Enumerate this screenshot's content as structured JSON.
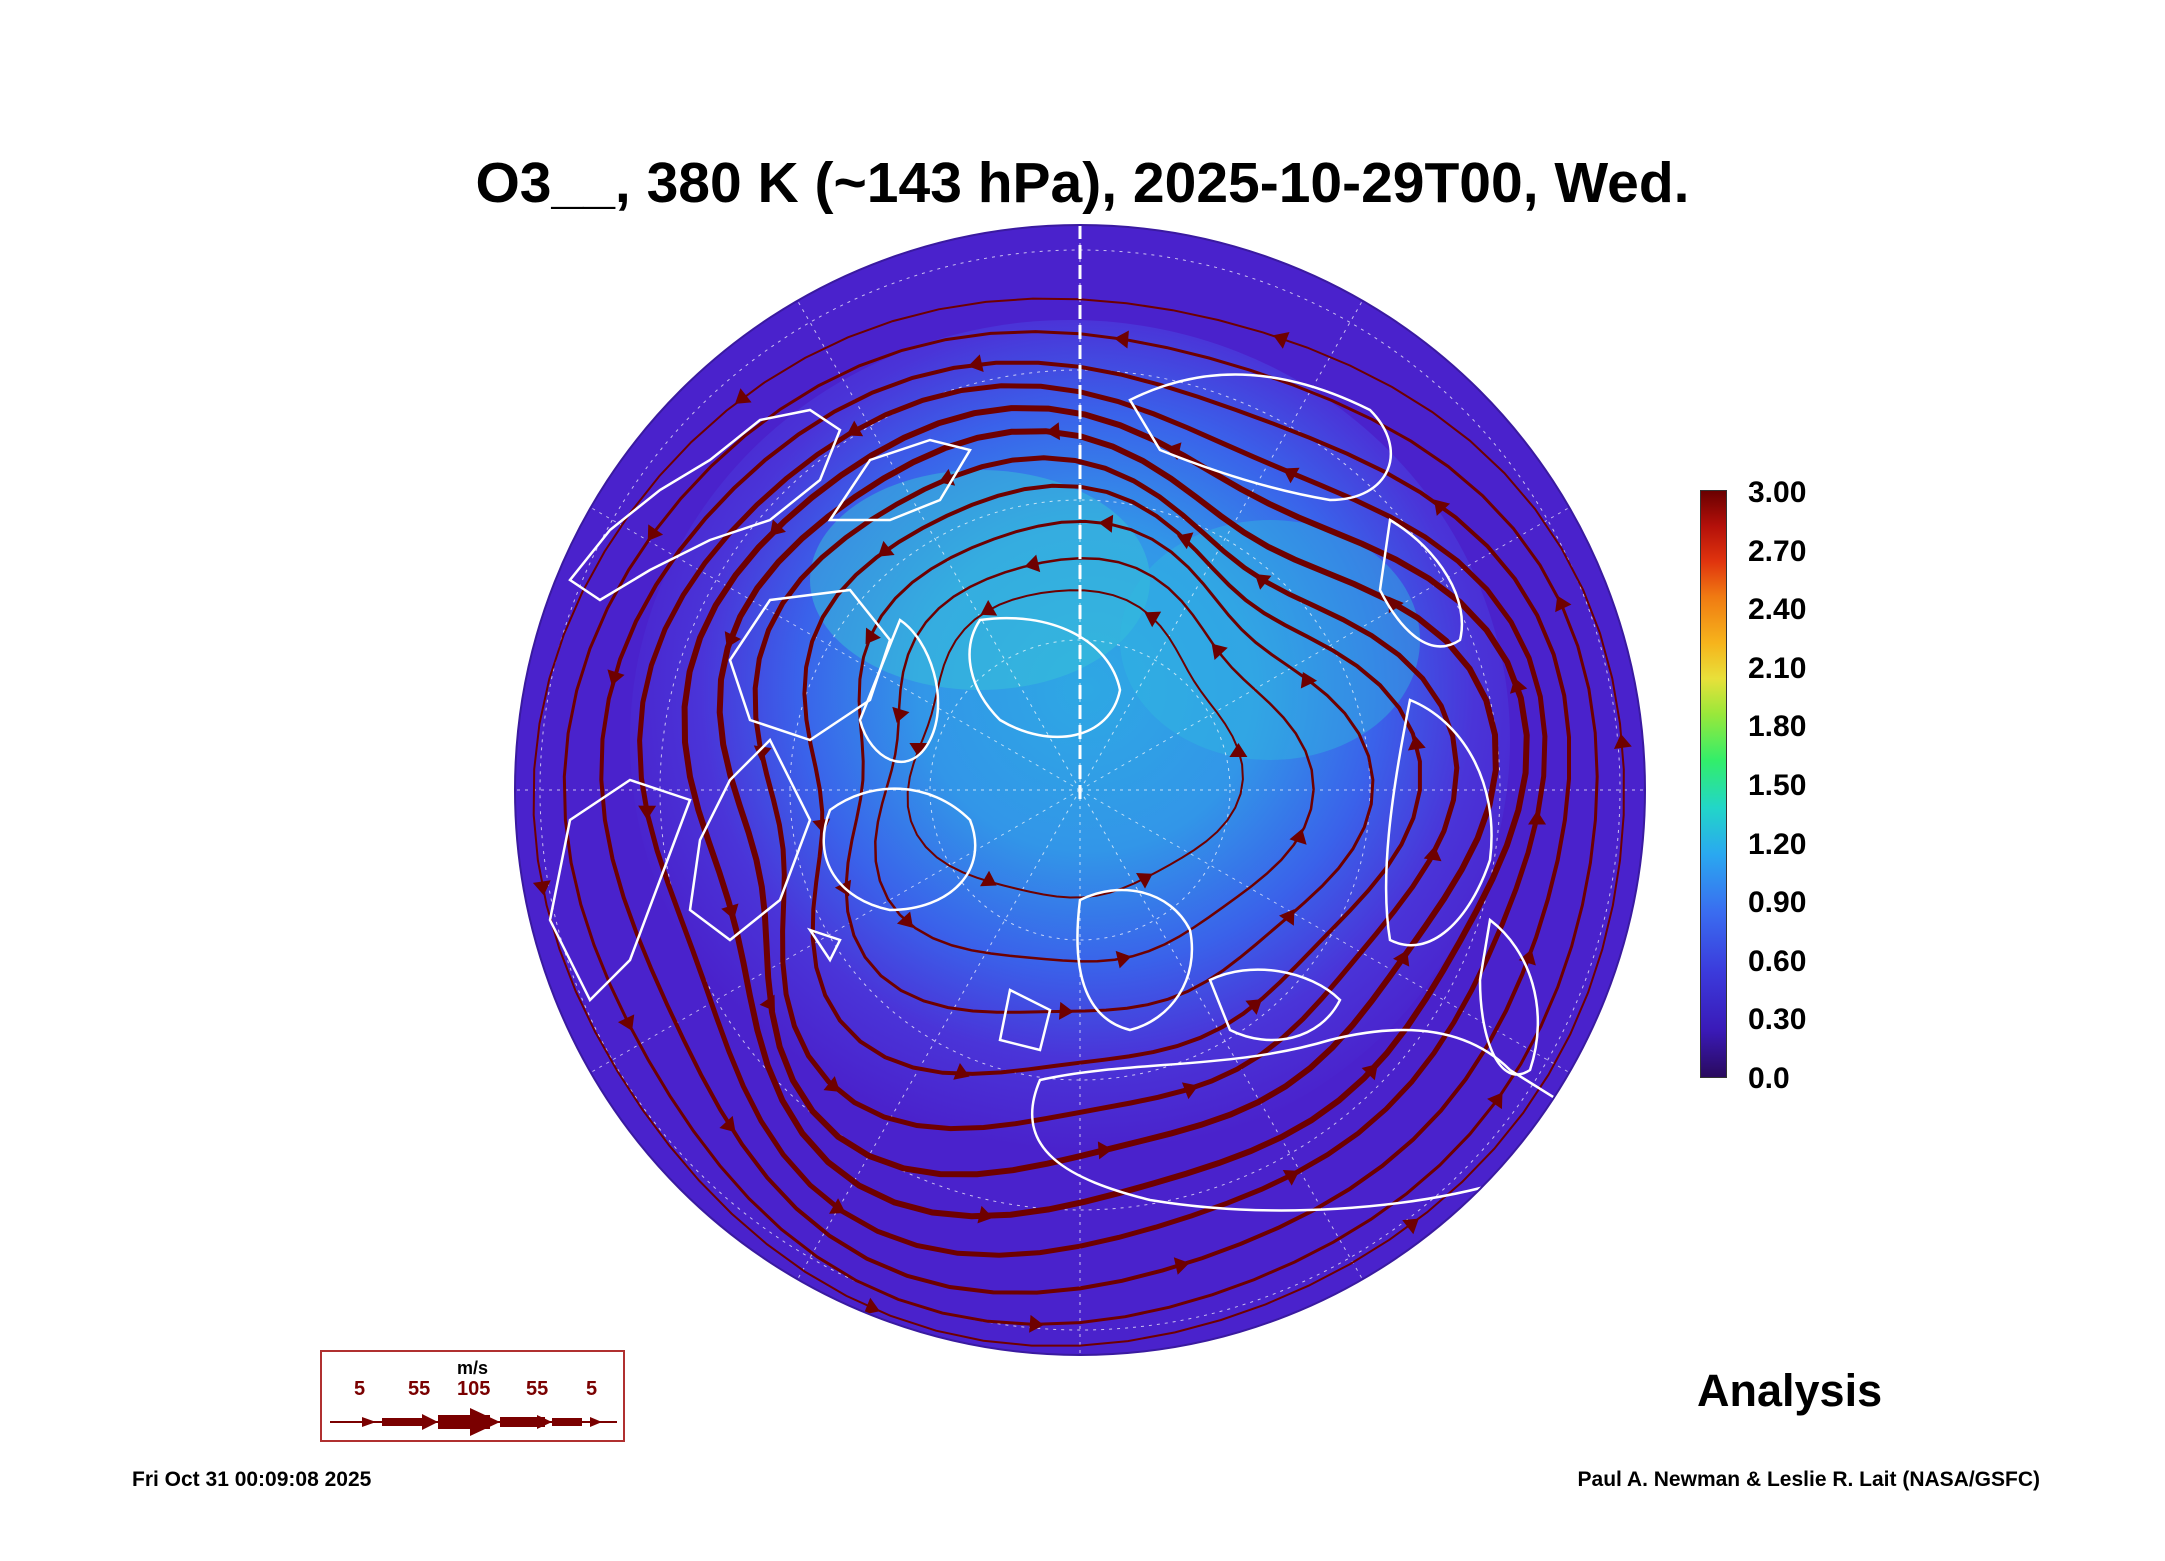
{
  "title": "O3__, 380 K (~143 hPa), 2025-10-29T00, Wed.",
  "colorbar": {
    "ticks": [
      "3.00",
      "2.70",
      "2.40",
      "2.10",
      "1.80",
      "1.50",
      "1.20",
      "0.90",
      "0.60",
      "0.30",
      "0.0"
    ],
    "min": 0.0,
    "max": 3.0,
    "colors": [
      "#2a0a5e",
      "#3a1ab8",
      "#3b3bdc",
      "#3a6cf0",
      "#2aa8f0",
      "#22d6c8",
      "#32ee6a",
      "#9ae83a",
      "#e8e03a",
      "#f6b41c",
      "#f07a12",
      "#e0340e",
      "#b4100a",
      "#6a0000"
    ]
  },
  "wind_legend": {
    "unit": "m/s",
    "labels": [
      "5",
      "55",
      "105",
      "55",
      "5"
    ],
    "color": "#7a0000"
  },
  "map": {
    "projection": "north polar stereographic",
    "background_color": "#4a22cc",
    "coastline_color": "#ffffff",
    "streamline_color": "#6e0000"
  },
  "analysis_label": "Analysis",
  "footer": {
    "timestamp": "Fri Oct 31 00:09:08 2025",
    "credit": "Paul A. Newman & Leslie R. Lait (NASA/GSFC)"
  }
}
